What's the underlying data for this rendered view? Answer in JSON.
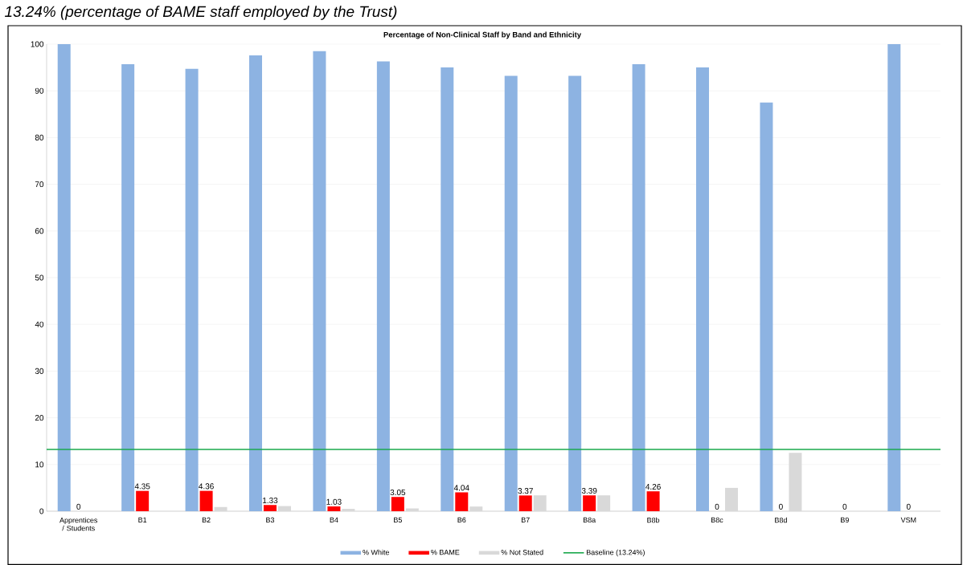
{
  "chart_data": {
    "type": "bar",
    "title": "Percentage of Non-Clinical Staff by Band and Ethnicity",
    "annotations": [
      "13.24% (percentage of BAME staff employed by the Trust)"
    ],
    "categories": [
      "Apprentices / Students",
      "B1",
      "B2",
      "B3",
      "B4",
      "B5",
      "B6",
      "B7",
      "B8a",
      "B8b",
      "B8c",
      "B8d",
      "B9",
      "VSM"
    ],
    "series": [
      {
        "name": "% White",
        "color": "#8db3e2",
        "values": [
          100,
          95.7,
          94.7,
          97.6,
          98.5,
          96.3,
          95.0,
          93.2,
          93.2,
          95.7,
          95.0,
          87.5,
          0,
          100
        ]
      },
      {
        "name": "% BAME",
        "color": "#ff0000",
        "values": [
          0,
          4.35,
          4.36,
          1.33,
          1.03,
          3.05,
          4.04,
          3.37,
          3.39,
          4.26,
          0,
          0,
          0,
          0
        ],
        "value_labels": [
          "0",
          "4.35",
          "4.36",
          "1.33",
          "1.03",
          "3.05",
          "4.04",
          "3.37",
          "3.39",
          "4.26",
          "0",
          "0",
          "0",
          "0"
        ]
      },
      {
        "name": "% Not Stated",
        "color": "#d9d9d9",
        "values": [
          0,
          0,
          0.9,
          1.1,
          0.5,
          0.6,
          1.0,
          3.4,
          3.4,
          0,
          5.0,
          12.5,
          0,
          0
        ]
      }
    ],
    "ref_lines": [
      {
        "axis": "y",
        "value": 13.24,
        "label": "Baseline (13.24%)",
        "color": "#1aa84c"
      }
    ],
    "ylim": [
      0,
      100
    ],
    "yticks": [
      0,
      10,
      20,
      30,
      40,
      50,
      60,
      70,
      80,
      90,
      100
    ],
    "grid": "y",
    "legend": "bottom"
  }
}
